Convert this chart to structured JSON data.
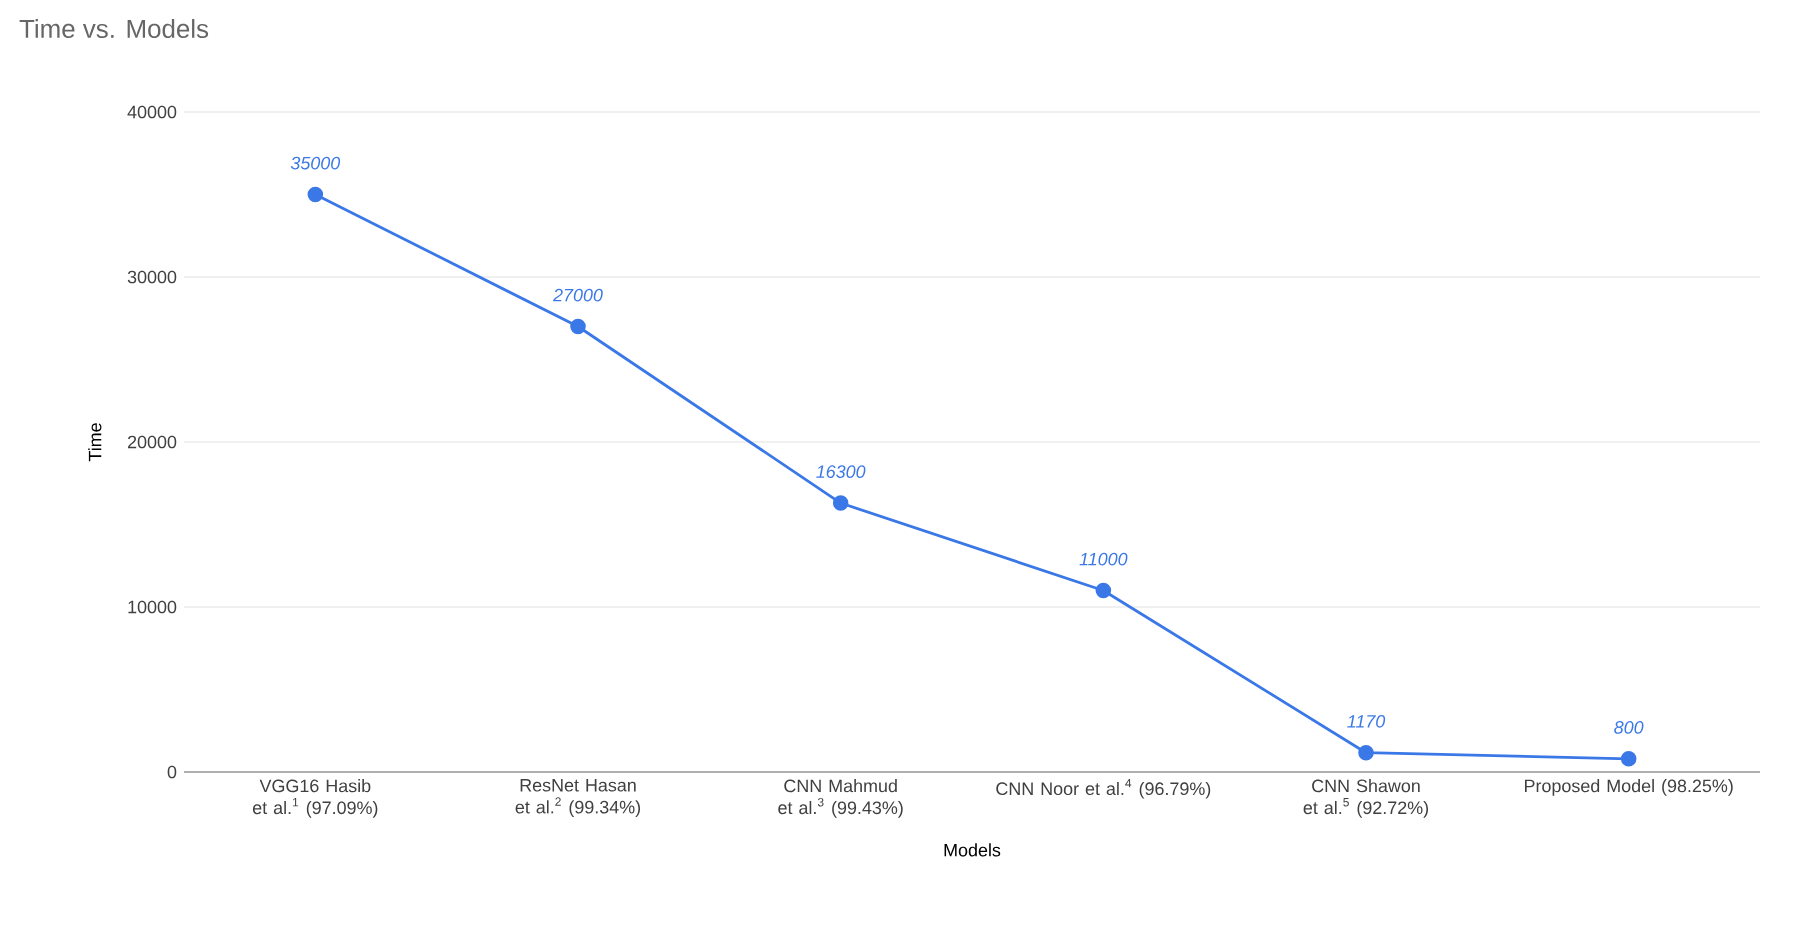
{
  "chart_data": {
    "type": "line",
    "title": "Time vs. Models",
    "xlabel": "Models",
    "ylabel": "Time",
    "categories": [
      "VGG16 Hasib et al.$^{1}$ (97.09%)",
      "ResNet Hasan et al.$^{2}$ (99.34%)",
      "CNN Mahmud et al.$^{3}$ (99.43%)",
      "CNN Noor et al.$^{4}$ (96.79%)",
      "CNN Shawon et al.$^{5}$ (92.72%)",
      "Proposed Model (98.25%)"
    ],
    "values": [
      35000,
      27000,
      16300,
      11000,
      1170,
      800
    ],
    "color": "#3b78e7",
    "ylim": [
      0,
      40000
    ],
    "yticks": [
      0,
      10000,
      20000,
      30000,
      40000
    ],
    "grid": "y",
    "marker": "circle",
    "line_style": "solid",
    "data_labels": true
  }
}
